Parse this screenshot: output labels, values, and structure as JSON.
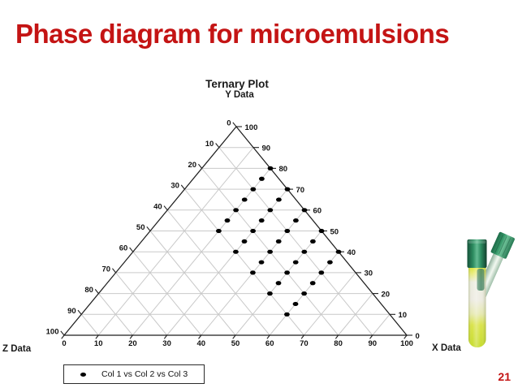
{
  "slide": {
    "title": "Phase diagram for microemulsions",
    "page_number": "21"
  },
  "colors": {
    "title": "#c41414",
    "page_number": "#c41414",
    "marker": "#000000",
    "grid": "#c9c9c9",
    "axis": "#1f1f1f"
  },
  "side_image": {
    "description": "two test tubes with green caps and yellow-green liquid"
  },
  "chart_data": {
    "type": "scatter",
    "subtype": "ternary",
    "title": "Ternary Plot",
    "axes": {
      "top_title": "Y Data",
      "left_title": "Z Data",
      "bottom_title": "X Data",
      "range": [
        0,
        100
      ],
      "grid_step": 10,
      "grid": true,
      "left_ticks": [
        0,
        10,
        20,
        30,
        40,
        50,
        60,
        70,
        80,
        90,
        100
      ],
      "right_ticks": [
        100,
        90,
        80,
        70,
        60,
        50,
        40,
        30,
        20,
        10,
        0
      ],
      "bottom_ticks": [
        0,
        10,
        20,
        30,
        40,
        50,
        60,
        70,
        80,
        90,
        100
      ]
    },
    "legend": [
      {
        "label": "Col 1 vs Col 2 vs Col 3",
        "marker": "filled-black-dot"
      }
    ],
    "series": [
      {
        "name": "Col 1 vs Col 2 vs Col 3",
        "points": [
          {
            "x": 20,
            "y": 80,
            "z": 0
          },
          {
            "x": 20,
            "y": 75,
            "z": 5
          },
          {
            "x": 20,
            "y": 70,
            "z": 10
          },
          {
            "x": 20,
            "y": 65,
            "z": 15
          },
          {
            "x": 20,
            "y": 60,
            "z": 20
          },
          {
            "x": 20,
            "y": 55,
            "z": 25
          },
          {
            "x": 20,
            "y": 50,
            "z": 30
          },
          {
            "x": 30,
            "y": 70,
            "z": 0
          },
          {
            "x": 30,
            "y": 65,
            "z": 5
          },
          {
            "x": 30,
            "y": 60,
            "z": 10
          },
          {
            "x": 30,
            "y": 55,
            "z": 15
          },
          {
            "x": 30,
            "y": 50,
            "z": 20
          },
          {
            "x": 30,
            "y": 45,
            "z": 25
          },
          {
            "x": 30,
            "y": 40,
            "z": 30
          },
          {
            "x": 40,
            "y": 60,
            "z": 0
          },
          {
            "x": 40,
            "y": 55,
            "z": 5
          },
          {
            "x": 40,
            "y": 50,
            "z": 10
          },
          {
            "x": 40,
            "y": 45,
            "z": 15
          },
          {
            "x": 40,
            "y": 40,
            "z": 20
          },
          {
            "x": 40,
            "y": 35,
            "z": 25
          },
          {
            "x": 40,
            "y": 30,
            "z": 30
          },
          {
            "x": 50,
            "y": 50,
            "z": 0
          },
          {
            "x": 50,
            "y": 45,
            "z": 5
          },
          {
            "x": 50,
            "y": 40,
            "z": 10
          },
          {
            "x": 50,
            "y": 35,
            "z": 15
          },
          {
            "x": 50,
            "y": 30,
            "z": 20
          },
          {
            "x": 50,
            "y": 25,
            "z": 25
          },
          {
            "x": 50,
            "y": 20,
            "z": 30
          },
          {
            "x": 60,
            "y": 40,
            "z": 0
          },
          {
            "x": 60,
            "y": 35,
            "z": 5
          },
          {
            "x": 60,
            "y": 30,
            "z": 10
          },
          {
            "x": 60,
            "y": 25,
            "z": 15
          },
          {
            "x": 60,
            "y": 20,
            "z": 20
          },
          {
            "x": 60,
            "y": 15,
            "z": 25
          },
          {
            "x": 60,
            "y": 10,
            "z": 30
          }
        ]
      }
    ]
  }
}
